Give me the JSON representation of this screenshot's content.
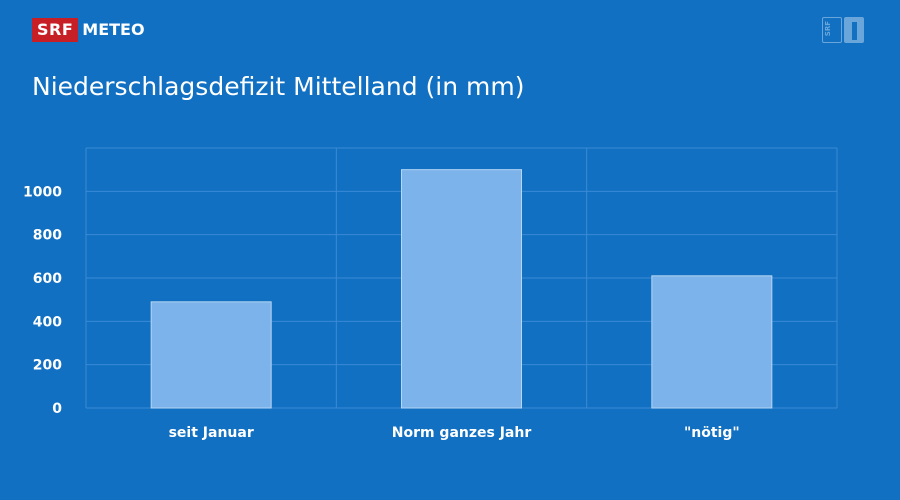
{
  "header": {
    "logo_srf": "SRF",
    "logo_meteo": "METEO",
    "channel_logo": "SRF 1"
  },
  "colors": {
    "background": "#1170c2",
    "bar": "#7cb3ea",
    "grid": "#3a8ad6",
    "brand_red": "#c71f26"
  },
  "chart_data": {
    "type": "bar",
    "title": "Niederschlagsdefizit Mittelland (in mm)",
    "categories": [
      "seit Januar",
      "Norm ganzes Jahr",
      "\"nötig\""
    ],
    "values": [
      490,
      1100,
      610
    ],
    "ylim": [
      0,
      1200
    ],
    "yticks": [
      0,
      200,
      400,
      600,
      800,
      1000
    ],
    "grid": true,
    "xlabel": "",
    "ylabel": ""
  }
}
